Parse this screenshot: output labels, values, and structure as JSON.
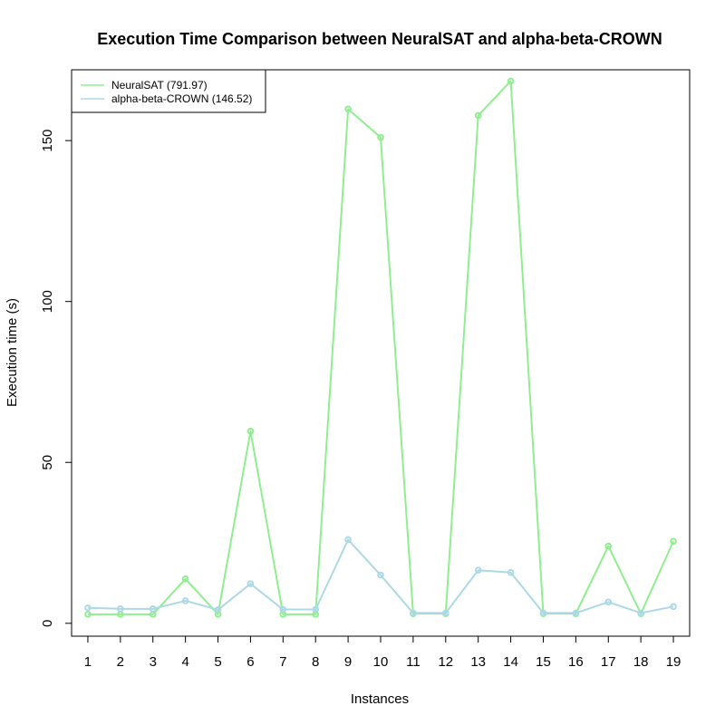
{
  "chart_data": {
    "type": "line",
    "title": "Execution Time Comparison between NeuralSAT and alpha-beta-CROWN",
    "xlabel": "Instances",
    "ylabel": "Execution time (s)",
    "categories": [
      "1",
      "2",
      "3",
      "4",
      "5",
      "6",
      "7",
      "8",
      "9",
      "10",
      "11",
      "12",
      "13",
      "14",
      "15",
      "16",
      "17",
      "18",
      "19"
    ],
    "xlim": [
      0.5,
      19.5
    ],
    "ylim": [
      -4,
      172
    ],
    "yticks": [
      0,
      50,
      100,
      150
    ],
    "grid": false,
    "legend_position": "top-left",
    "series": [
      {
        "name": "NeuralSAT (791.97)",
        "color": "#90EE90",
        "values": [
          2.8,
          2.8,
          2.8,
          13.8,
          2.8,
          59.7,
          2.8,
          2.8,
          159.8,
          151.0,
          3.0,
          3.0,
          157.8,
          168.5,
          3.0,
          3.0,
          24.0,
          3.0,
          25.5
        ]
      },
      {
        "name": "alpha-beta-CROWN (146.52)",
        "color": "#ADD8E6",
        "values": [
          4.8,
          4.5,
          4.5,
          7.0,
          4.2,
          12.3,
          4.3,
          4.3,
          26.0,
          15.0,
          3.2,
          3.2,
          16.5,
          15.8,
          3.2,
          3.2,
          6.6,
          3.2,
          5.2
        ]
      }
    ]
  }
}
